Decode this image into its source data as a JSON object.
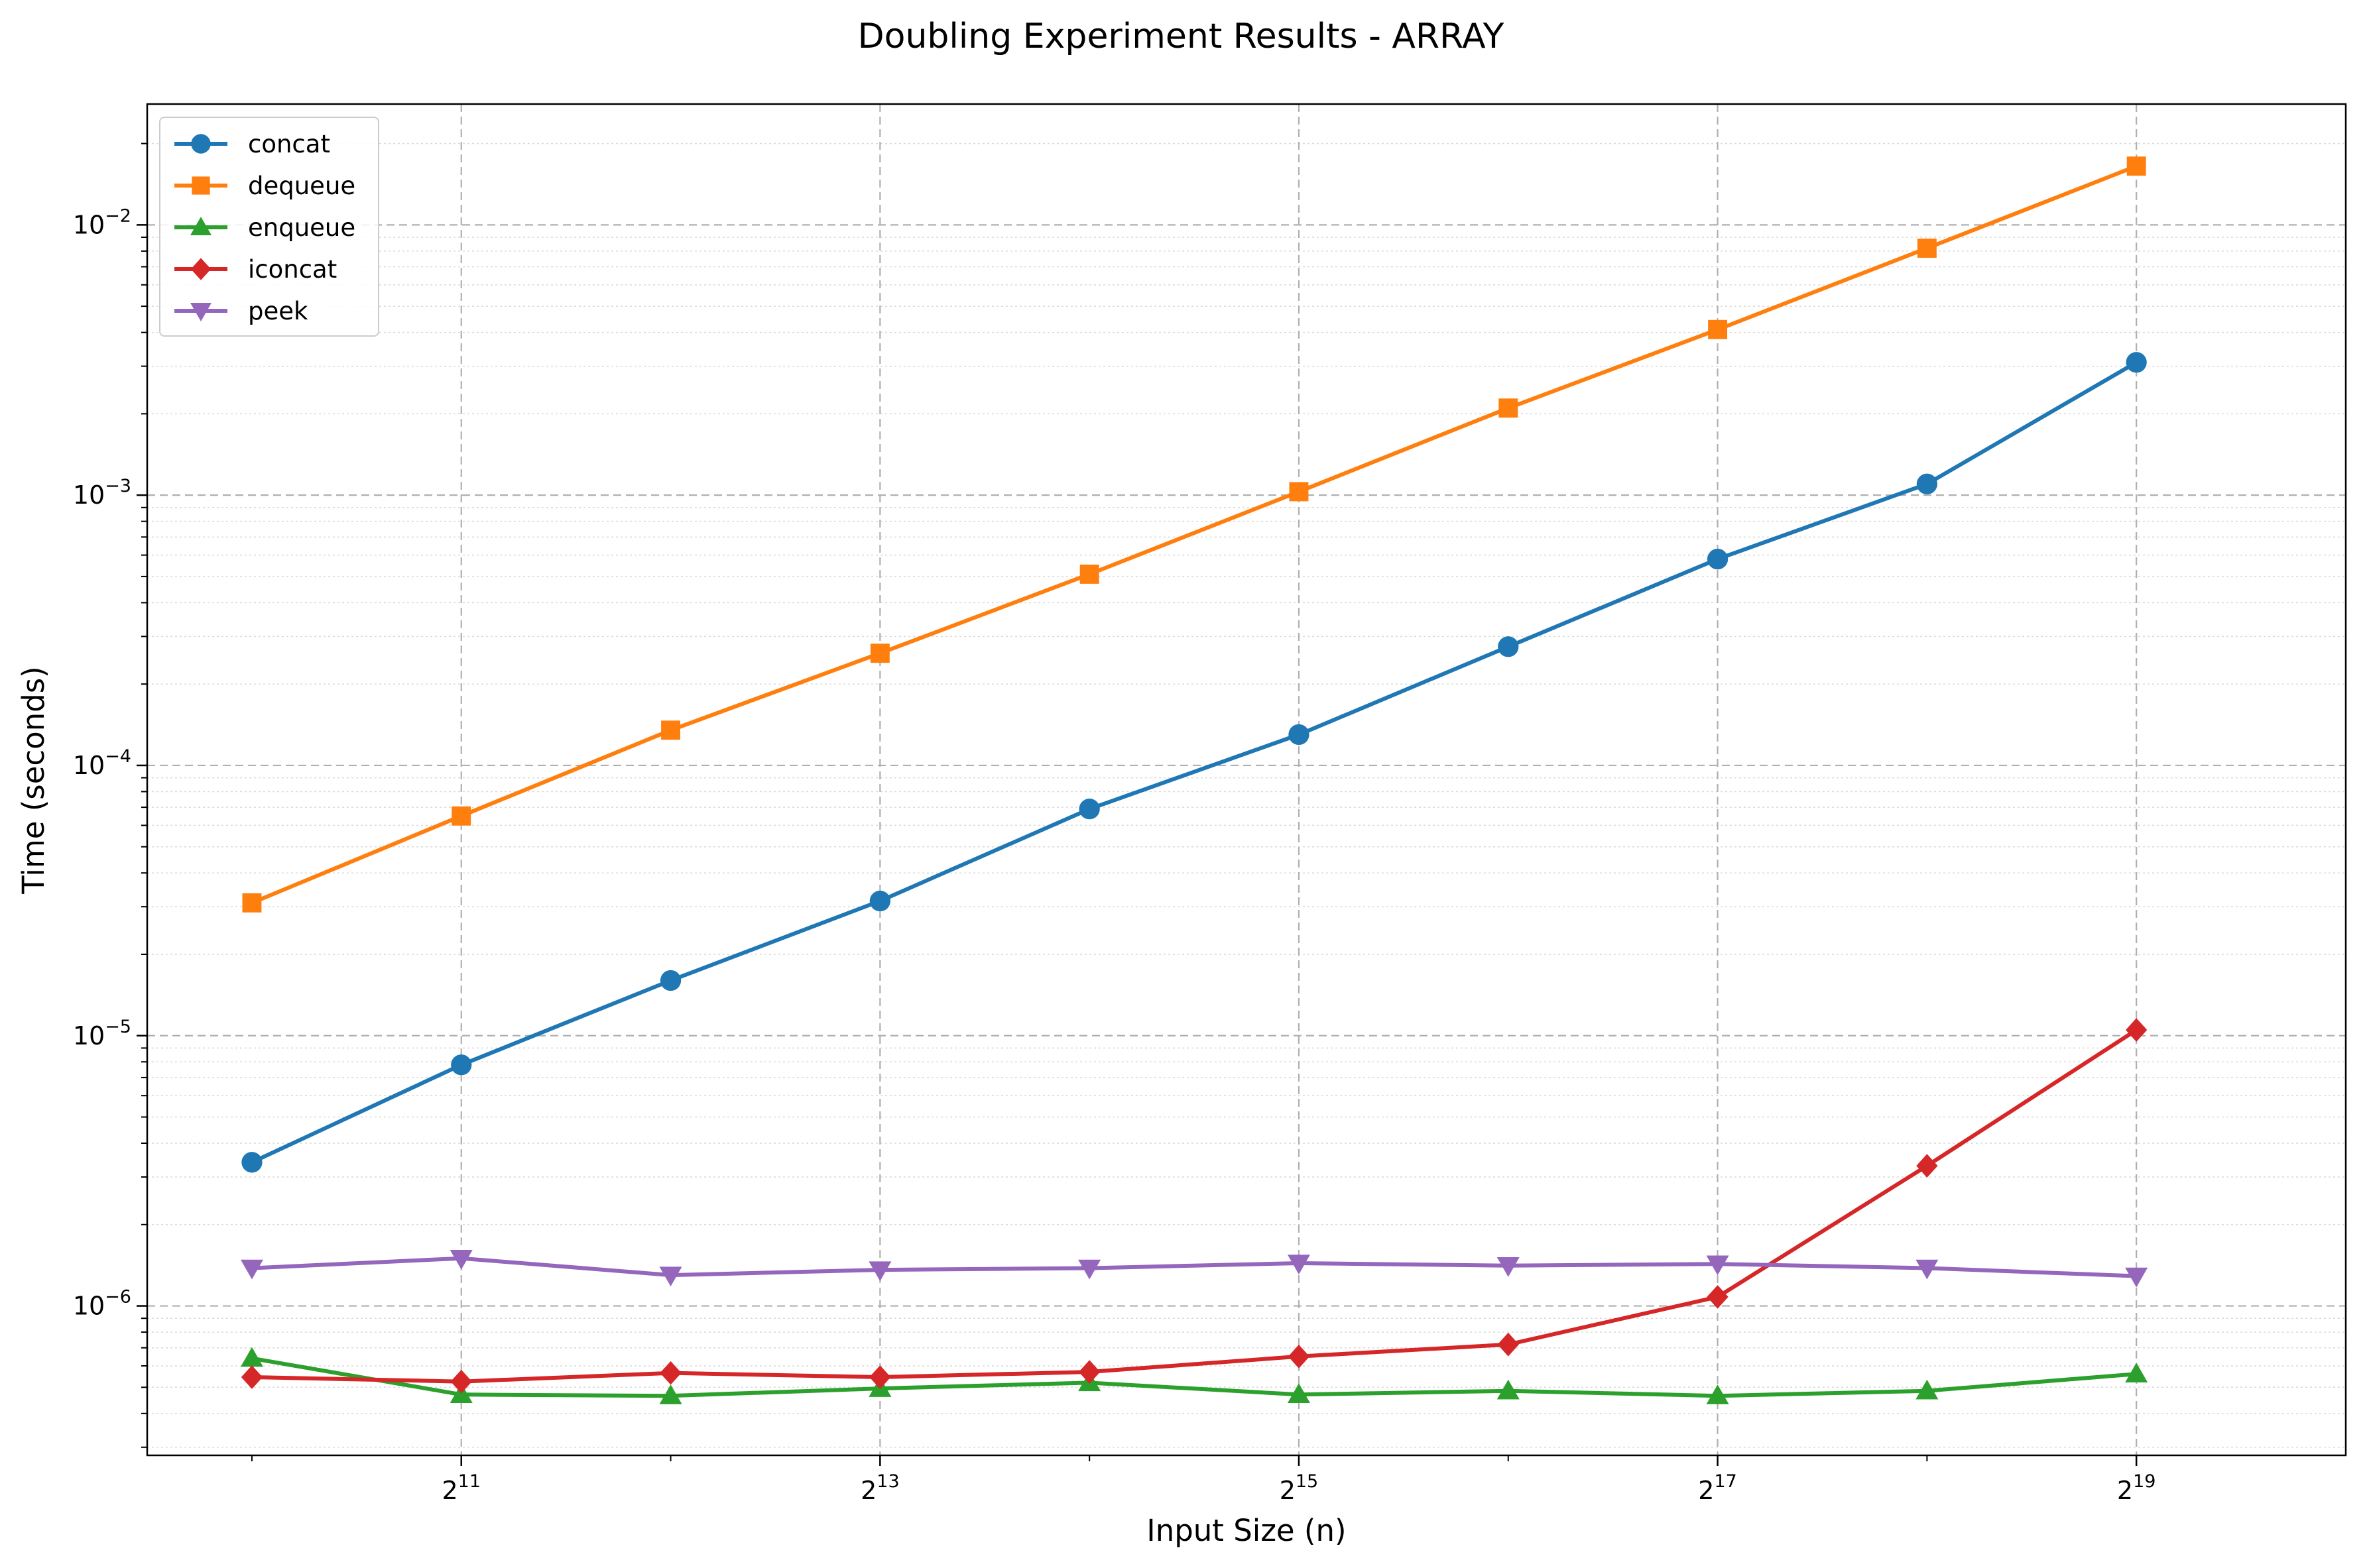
{
  "chart_data": {
    "type": "line",
    "title": "Doubling Experiment Results - ARRAY",
    "xlabel": "Input Size (n)",
    "ylabel": "Time (seconds)",
    "x_scale": "log2",
    "y_scale": "log10",
    "x": [
      1024,
      2048,
      4096,
      8192,
      16384,
      32768,
      65536,
      131072,
      262144,
      524288
    ],
    "xlim": [
      724,
      1048576
    ],
    "ylim": [
      2.8e-07,
      0.028
    ],
    "x_ticks": [
      {
        "value": 2048,
        "base": "2",
        "exp": "11"
      },
      {
        "value": 8192,
        "base": "2",
        "exp": "13"
      },
      {
        "value": 32768,
        "base": "2",
        "exp": "15"
      },
      {
        "value": 131072,
        "base": "2",
        "exp": "17"
      },
      {
        "value": 524288,
        "base": "2",
        "exp": "19"
      }
    ],
    "y_ticks": [
      {
        "value": 1e-06,
        "base": "10",
        "exp": "−6"
      },
      {
        "value": 1e-05,
        "base": "10",
        "exp": "−5"
      },
      {
        "value": 0.0001,
        "base": "10",
        "exp": "−4"
      },
      {
        "value": 0.001,
        "base": "10",
        "exp": "−3"
      },
      {
        "value": 0.01,
        "base": "10",
        "exp": "−2"
      }
    ],
    "grid": true,
    "legend_position": "top-left",
    "series": [
      {
        "name": "concat",
        "color": "#1f77b4",
        "marker": "circle",
        "values": [
          3.4e-06,
          7.8e-06,
          1.6e-05,
          3.15e-05,
          6.9e-05,
          0.00013,
          0.000275,
          0.00058,
          0.0011,
          0.0031
        ]
      },
      {
        "name": "dequeue",
        "color": "#ff7f0e",
        "marker": "square",
        "values": [
          3.1e-05,
          6.5e-05,
          0.000135,
          0.00026,
          0.00051,
          0.00103,
          0.0021,
          0.0041,
          0.0082,
          0.0165
        ]
      },
      {
        "name": "enqueue",
        "color": "#2ca02c",
        "marker": "triangle-up",
        "values": [
          6.4e-07,
          4.7e-07,
          4.65e-07,
          4.95e-07,
          5.2e-07,
          4.7e-07,
          4.85e-07,
          4.65e-07,
          4.85e-07,
          5.6e-07
        ]
      },
      {
        "name": "iconcat",
        "color": "#d62728",
        "marker": "diamond",
        "values": [
          5.45e-07,
          5.25e-07,
          5.65e-07,
          5.45e-07,
          5.7e-07,
          6.5e-07,
          7.2e-07,
          1.08e-06,
          3.3e-06,
          1.05e-05
        ]
      },
      {
        "name": "peek",
        "color": "#9467bd",
        "marker": "triangle-down",
        "values": [
          1.38e-06,
          1.5e-06,
          1.3e-06,
          1.36e-06,
          1.38e-06,
          1.44e-06,
          1.41e-06,
          1.43e-06,
          1.38e-06,
          1.29e-06
        ]
      }
    ]
  }
}
